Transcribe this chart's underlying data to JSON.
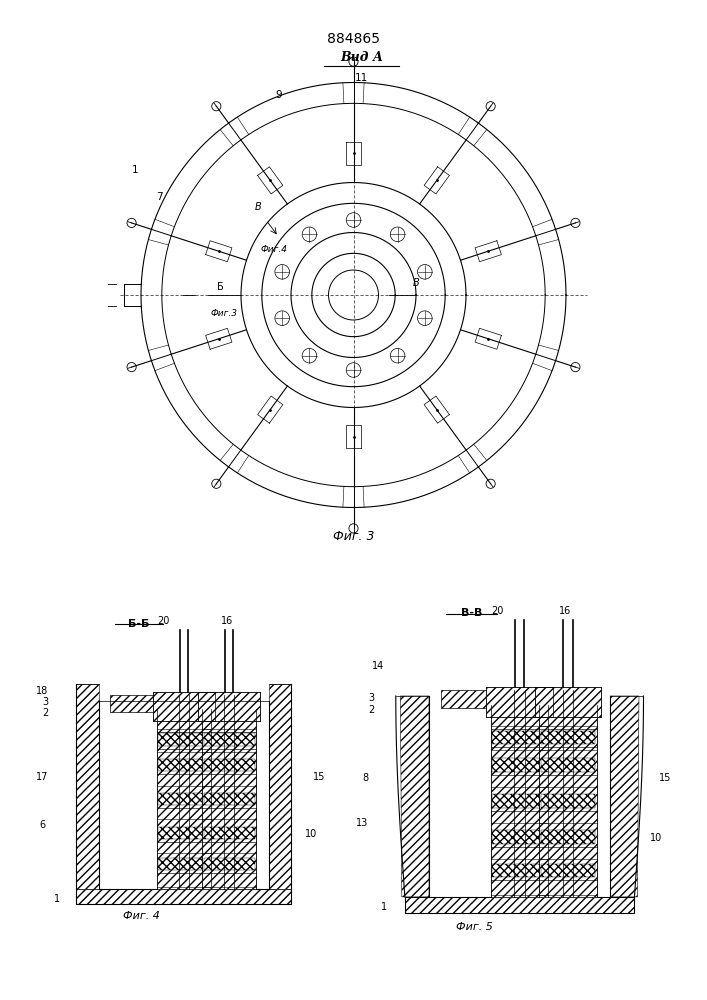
{
  "patent_number": "884865",
  "bg_color": "#ffffff",
  "line_color": "#000000",
  "fig3_title": "Вид А",
  "fig3_caption": "Фиг. 3",
  "fig4_caption": "Фиг. 4",
  "fig5_caption": "Фиг. 5",
  "fig4_section": "Б-Б",
  "fig5_section": "В-В"
}
